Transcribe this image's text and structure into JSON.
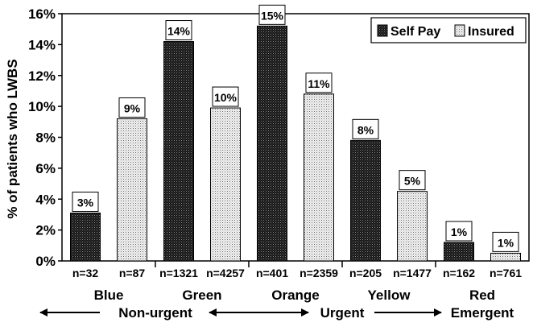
{
  "chart_data": {
    "type": "bar",
    "ylabel": "% of patients who LWBS",
    "ylim": [
      0,
      16
    ],
    "yticks": [
      "0%",
      "2%",
      "4%",
      "6%",
      "8%",
      "10%",
      "12%",
      "14%",
      "16%"
    ],
    "grid": false,
    "legend_position": "top-right",
    "categories": [
      "Blue",
      "Green",
      "Orange",
      "Yellow",
      "Red"
    ],
    "series": [
      {
        "name": "Self Pay",
        "pattern": "dark-dotted",
        "values": [
          3.1,
          14.2,
          15.2,
          7.8,
          1.2
        ],
        "labels": [
          "3%",
          "14%",
          "15%",
          "8%",
          "1%"
        ],
        "n": [
          "n=32",
          "n=1321",
          "n=401",
          "n=205",
          "n=162"
        ]
      },
      {
        "name": "Insured",
        "pattern": "light-dotted",
        "values": [
          9.2,
          9.9,
          10.8,
          4.5,
          0.5
        ],
        "labels": [
          "9%",
          "10%",
          "11%",
          "5%",
          "1%"
        ],
        "n": [
          "n=87",
          "n=4257",
          "n=2359",
          "n=1477",
          "n=761"
        ]
      }
    ],
    "acuity_groups": [
      {
        "label": "Non-urgent",
        "start": 0,
        "end": 1
      },
      {
        "label": "Urgent",
        "start": 2,
        "end": 3
      },
      {
        "label": "Emergent",
        "start": 4,
        "end": 4
      }
    ]
  }
}
